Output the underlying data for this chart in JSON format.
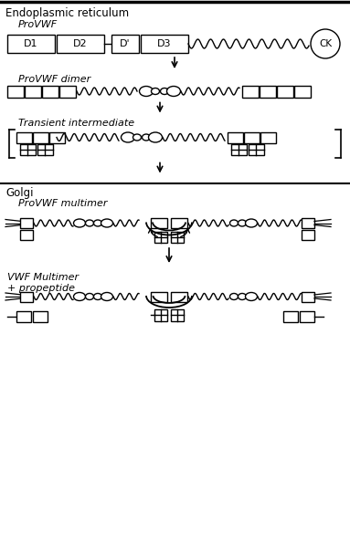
{
  "bg_color": "#ffffff",
  "line_color": "#000000",
  "title_er": "Endoplasmic reticulum",
  "title_golgi": "Golgi",
  "label_provwf": "ProVWF",
  "label_dimer": "ProVWF dimer",
  "label_transient": "Transient intermediate",
  "label_multimer": "ProVWF multimer",
  "label_vwf": "VWF Multimer\n+ propeptide",
  "domain_labels": [
    "D1",
    "D2",
    "D'",
    "D3"
  ],
  "ck_label": "CK",
  "figw": 3.83,
  "figh": 6.06,
  "dpi": 100
}
